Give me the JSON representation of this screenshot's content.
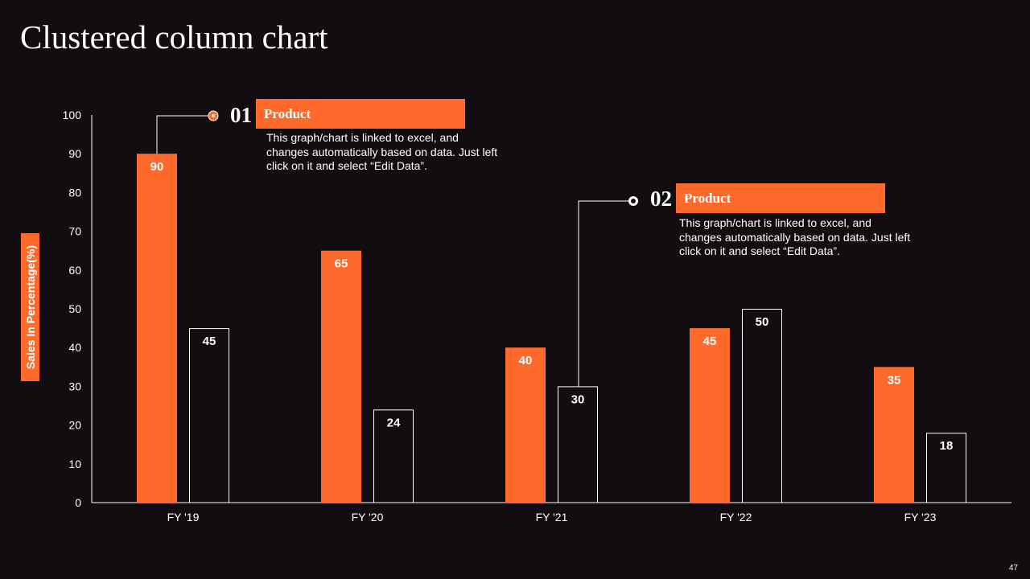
{
  "slide": {
    "title": "Clustered column chart",
    "page_number": "47"
  },
  "colors": {
    "background": "#110d10",
    "accent": "#ff6a2c",
    "outline": "#ffffff"
  },
  "callouts": [
    {
      "number": "01",
      "heading": "Product",
      "description": "This graph/chart is linked to excel, and changes automatically based on data. Just left click on it and select “Edit Data”.",
      "marker_icon": "orange-dot-icon",
      "points_to": {
        "category": "FY '19",
        "series": "Product 01"
      }
    },
    {
      "number": "02",
      "heading": "Product",
      "description": "This graph/chart is linked to excel, and changes automatically based on data. Just left click on it and select “Edit Data”.",
      "marker_icon": "white-ring-icon",
      "points_to": {
        "category": "FY '21",
        "series": "Product 02"
      }
    }
  ],
  "chart_data": {
    "type": "bar",
    "title": "Clustered column chart",
    "xlabel": "",
    "ylabel": "Sales In Percentage(%)",
    "ylim": [
      0,
      100
    ],
    "yticks": [
      0,
      10,
      20,
      30,
      40,
      50,
      60,
      70,
      80,
      90,
      100
    ],
    "grid": false,
    "legend": "none",
    "categories": [
      "FY '19",
      "FY '20",
      "FY '21",
      "FY '22",
      "FY '23"
    ],
    "series": [
      {
        "name": "Product 01",
        "style": "filled",
        "values": [
          90,
          65,
          40,
          45,
          35
        ]
      },
      {
        "name": "Product 02",
        "style": "outlined",
        "values": [
          45,
          24,
          30,
          50,
          18
        ]
      }
    ]
  }
}
